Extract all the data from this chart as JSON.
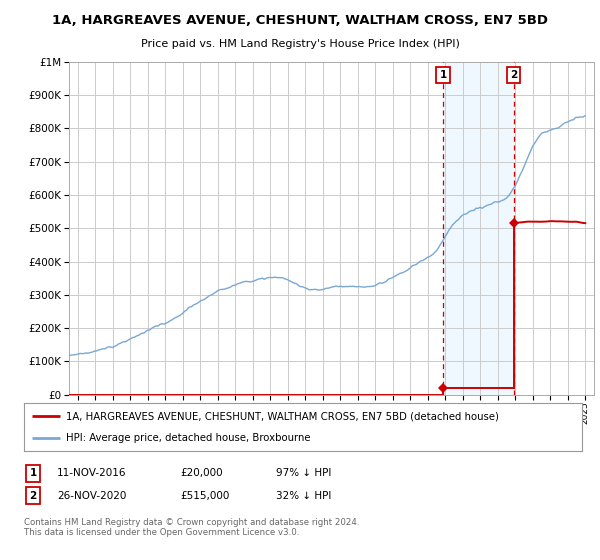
{
  "title": "1A, HARGREAVES AVENUE, CHESHUNT, WALTHAM CROSS, EN7 5BD",
  "subtitle": "Price paid vs. HM Land Registry's House Price Index (HPI)",
  "ylim": [
    0,
    1000000
  ],
  "yticks": [
    0,
    100000,
    200000,
    300000,
    400000,
    500000,
    600000,
    700000,
    800000,
    900000,
    1000000
  ],
  "xlim_start": 1995.5,
  "xlim_end": 2025.5,
  "hpi_color": "#7aa8d4",
  "sale_color": "#cc0000",
  "marker_color": "#cc0000",
  "sale1_x": 2016.87,
  "sale1_y": 20000,
  "sale2_x": 2020.91,
  "sale2_y": 515000,
  "label1": "1",
  "label2": "2",
  "legend_line1": "1A, HARGREAVES AVENUE, CHESHUNT, WALTHAM CROSS, EN7 5BD (detached house)",
  "legend_line2": "HPI: Average price, detached house, Broxbourne",
  "table_row1": [
    "1",
    "11-NOV-2016",
    "£20,000",
    "97% ↓ HPI"
  ],
  "table_row2": [
    "2",
    "26-NOV-2020",
    "£515,000",
    "32% ↓ HPI"
  ],
  "footer": "Contains HM Land Registry data © Crown copyright and database right 2024.\nThis data is licensed under the Open Government Licence v3.0.",
  "bg_color": "#ffffff",
  "grid_color": "#cccccc",
  "shade_color": "#ddeeff",
  "shade_alpha": 0.45
}
